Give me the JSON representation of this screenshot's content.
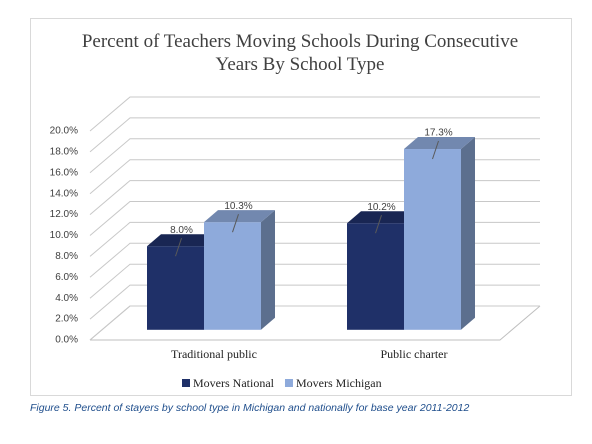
{
  "chart_data": {
    "type": "bar3d",
    "title": "Percent of Teachers Moving Schools During Consecutive Years By School Type",
    "categories": [
      "Traditional public",
      "Public charter"
    ],
    "series": [
      {
        "name": "Movers National",
        "color": "#1f3068",
        "values": [
          8.0,
          10.2
        ],
        "value_labels": [
          "8.0%",
          "10.2%"
        ]
      },
      {
        "name": "Movers Michigan",
        "color": "#8eaadb",
        "values": [
          10.3,
          17.3
        ],
        "value_labels": [
          "10.3%",
          "17.3%"
        ]
      }
    ],
    "ylim": [
      0,
      20
    ],
    "yticks": [
      {
        "value": 0,
        "label": "0.0%"
      },
      {
        "value": 2,
        "label": "2.0%"
      },
      {
        "value": 4,
        "label": "4.0%"
      },
      {
        "value": 6,
        "label": "6.0%"
      },
      {
        "value": 8,
        "label": "8.0%"
      },
      {
        "value": 10,
        "label": "10.0%"
      },
      {
        "value": 12,
        "label": "12.0%"
      },
      {
        "value": 14,
        "label": "14.0%"
      },
      {
        "value": 16,
        "label": "16.0%"
      },
      {
        "value": 18,
        "label": "18.0%"
      },
      {
        "value": 20,
        "label": "20.0%"
      }
    ],
    "grid": true,
    "legend": "bottom",
    "caption": "Figure 5. Percent of stayers by school type in Michigan and nationally for base year 2011-2012"
  }
}
